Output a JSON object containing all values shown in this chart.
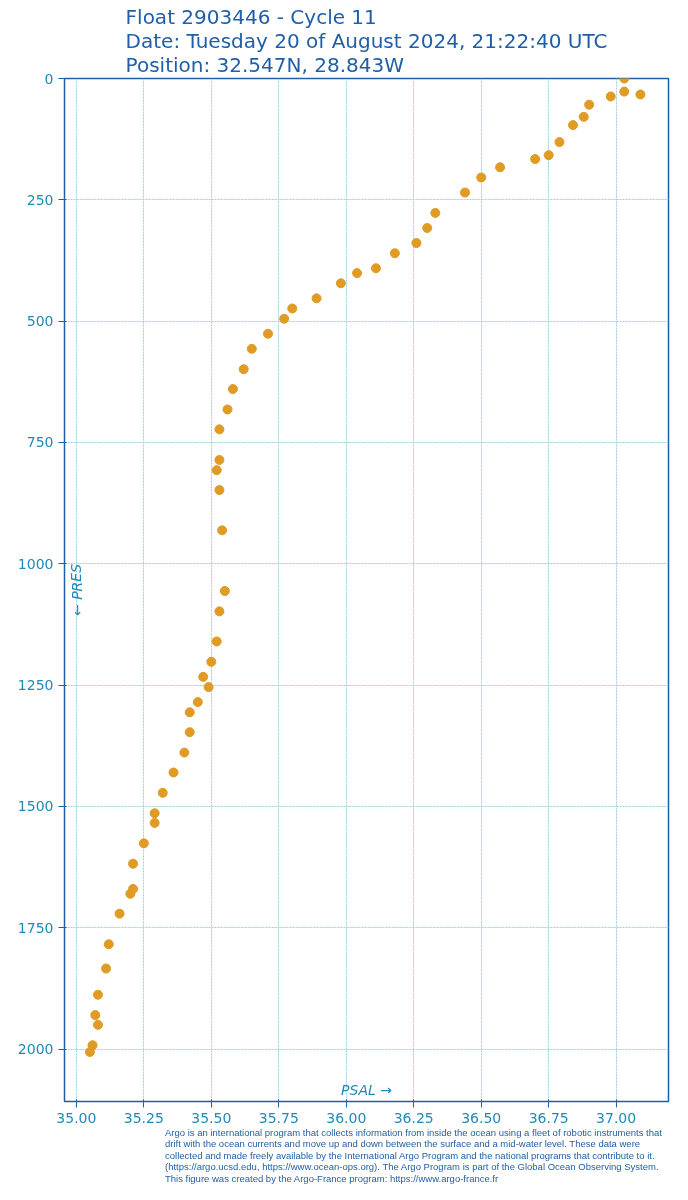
{
  "chart_data": {
    "type": "scatter",
    "title": "Float 2903446 - Cycle 11",
    "subtitle": "Date: Tuesday 20 of August 2024, 21:22:40 UTC\nPosition: 32.547N, 28.843W",
    "xlabel": "PSAL →",
    "ylabel": "← PRES",
    "x": [
      37.03,
      37.03,
      37.09,
      36.98,
      36.9,
      36.88,
      36.84,
      36.79,
      36.75,
      36.7,
      36.57,
      36.5,
      36.44,
      36.33,
      36.3,
      36.26,
      36.18,
      36.11,
      36.04,
      35.98,
      35.89,
      35.8,
      35.77,
      35.71,
      35.65,
      35.62,
      35.58,
      35.56,
      35.53,
      35.53,
      35.52,
      35.53,
      35.54,
      35.55,
      35.53,
      35.52,
      35.5,
      35.47,
      35.49,
      35.45,
      35.42,
      35.42,
      35.4,
      35.36,
      35.32,
      35.29,
      35.29,
      35.25,
      35.21,
      35.21,
      35.2,
      35.16,
      35.12,
      35.11,
      35.08,
      35.07,
      35.08,
      35.06,
      35.05
    ],
    "series": [
      {
        "color": "#e09b24",
        "values": [
          0,
          27,
          33,
          37,
          54,
          79,
          96,
          131,
          158,
          166,
          183,
          204,
          235,
          277,
          308,
          339,
          360,
          391,
          401,
          422,
          453,
          474,
          495,
          526,
          557,
          599,
          640,
          682,
          723,
          786,
          807,
          848,
          931,
          1056,
          1098,
          1160,
          1202,
          1233,
          1254,
          1285,
          1306,
          1347,
          1389,
          1430,
          1472,
          1514,
          1534,
          1576,
          1618,
          1670,
          1680,
          1721,
          1784,
          1834,
          1888,
          1930,
          1950,
          1992,
          2006
        ]
      }
    ],
    "xlim": [
      34.956,
      37.194
    ],
    "ylim": [
      2108,
      0
    ],
    "xticks": [
      {
        "value": 35.0,
        "label": "35.00"
      },
      {
        "value": 35.25,
        "label": "35.25"
      },
      {
        "value": 35.5,
        "label": "35.50"
      },
      {
        "value": 35.75,
        "label": "35.75"
      },
      {
        "value": 36.0,
        "label": "36.00"
      },
      {
        "value": 36.25,
        "label": "36.25"
      },
      {
        "value": 36.5,
        "label": "36.50"
      },
      {
        "value": 36.75,
        "label": "36.75"
      },
      {
        "value": 37.0,
        "label": "37.00"
      }
    ],
    "yticks": [
      0,
      250,
      500,
      750,
      1000,
      1250,
      1500,
      1750,
      2000
    ],
    "grid": true,
    "marker": "circle",
    "annotations": [
      "Argo is an international program that collects information from inside the ocean using a fleet of robotic instruments that drift with the ocean currents and move up and down between the surface and a mid-water level. These data were collected and made freely available by the International Argo Program and the national programs that contribute to it. (https://argo.ucsd.edu, https://www.ocean-ops.org). The Argo Program is part of the Global Ocean Observing System. This figure was created by the Argo-France program: https://www.argo-france.fr"
    ]
  }
}
